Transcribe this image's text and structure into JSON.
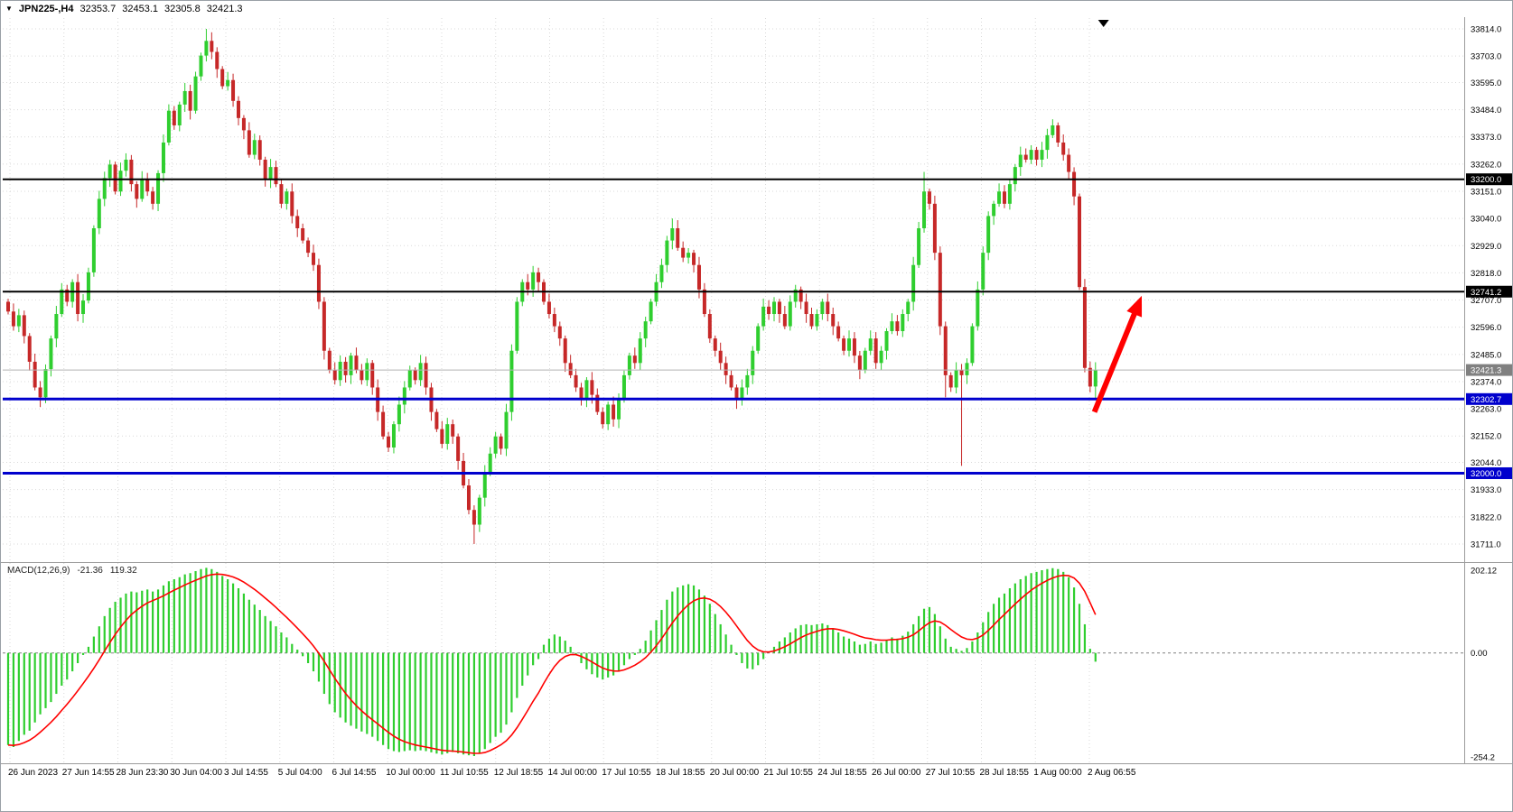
{
  "header": {
    "dropdown_icon": "▼",
    "symbol_period": "JPN225-,H4",
    "open": "32353.7",
    "high": "32453.1",
    "low": "32305.8",
    "close": "32421.3"
  },
  "chart_data": [
    {
      "type": "candlestick",
      "title": "JPN225-,H4",
      "last_bar": {
        "open": 32353.7,
        "high": 32453.1,
        "low": 32305.8,
        "close": 32421.3
      },
      "y_axis": {
        "ticks": [
          "33814.0",
          "33703.0",
          "33595.0",
          "33484.0",
          "33373.0",
          "33262.0",
          "33151.0",
          "33040.0",
          "32929.0",
          "32818.0",
          "32707.0",
          "32596.0",
          "32485.0",
          "32374.0",
          "32263.0",
          "32152.0",
          "32044.0",
          "31933.0",
          "31822.0",
          "31711.0"
        ]
      },
      "x_axis": {
        "labels": [
          "26 Jun 2023",
          "27 Jun 14:55",
          "28 Jun 23:30",
          "30 Jun 04:00",
          "3 Jul 14:55",
          "5 Jul 04:00",
          "6 Jul 14:55",
          "10 Jul 00:00",
          "11 Jul 10:55",
          "12 Jul 18:55",
          "14 Jul 00:00",
          "17 Jul 10:55",
          "18 Jul 18:55",
          "20 Jul 00:00",
          "21 Jul 10:55",
          "24 Jul 18:55",
          "26 Jul 00:00",
          "27 Jul 10:55",
          "28 Jul 18:55",
          "1 Aug 00:00",
          "2 Aug 06:55"
        ]
      },
      "first_open": 32700,
      "closes": [
        32660,
        32600,
        32645,
        32560,
        32455,
        32350,
        32310,
        32425,
        32550,
        32650,
        32750,
        32700,
        32780,
        32650,
        32705,
        32820,
        33000,
        33120,
        33205,
        33260,
        33150,
        33235,
        33280,
        33180,
        33120,
        33200,
        33150,
        33100,
        33225,
        33350,
        33480,
        33420,
        33505,
        33560,
        33480,
        33620,
        33705,
        33765,
        33720,
        33650,
        33580,
        33605,
        33520,
        33450,
        33400,
        33300,
        33360,
        33280,
        33200,
        33250,
        33180,
        33100,
        33150,
        33050,
        33000,
        32950,
        32900,
        32850,
        32700,
        32500,
        32420,
        32380,
        32455,
        32400,
        32480,
        32420,
        32380,
        32450,
        32350,
        32250,
        32150,
        32105,
        32200,
        32280,
        32350,
        32420,
        32380,
        32450,
        32350,
        32250,
        32180,
        32120,
        32200,
        32150,
        32050,
        31950,
        31850,
        31790,
        31900,
        32000,
        32080,
        32150,
        32100,
        32250,
        32500,
        32700,
        32780,
        32750,
        32820,
        32780,
        32700,
        32650,
        32600,
        32550,
        32450,
        32400,
        32350,
        32300,
        32380,
        32320,
        32250,
        32200,
        32280,
        32220,
        32300,
        32400,
        32480,
        32450,
        32550,
        32620,
        32700,
        32780,
        32850,
        32950,
        33000,
        32920,
        32880,
        32900,
        32850,
        32750,
        32650,
        32550,
        32500,
        32450,
        32400,
        32350,
        32300,
        32350,
        32400,
        32500,
        32600,
        32680,
        32650,
        32700,
        32650,
        32600,
        32700,
        32750,
        32700,
        32650,
        32600,
        32650,
        32700,
        32650,
        32600,
        32550,
        32500,
        32550,
        32480,
        32420,
        32500,
        32550,
        32450,
        32500,
        32580,
        32620,
        32580,
        32650,
        32700,
        32850,
        33000,
        33150,
        33100,
        32900,
        32600,
        32400,
        32350,
        32420,
        32400,
        32450,
        32600,
        32750,
        32900,
        33050,
        33100,
        33150,
        33100,
        33180,
        33250,
        33300,
        33280,
        33320,
        33280,
        33320,
        33380,
        33420,
        33350,
        33300,
        33230,
        33130,
        32760,
        32430,
        32354,
        32421.3
      ],
      "wick_overrides": {
        "6": [
          null,
          32270
        ],
        "37": [
          33814,
          null
        ],
        "38": [
          33800,
          null
        ],
        "87": [
          null,
          31711
        ],
        "124": [
          33040,
          null
        ],
        "136": [
          null,
          32263
        ],
        "171": [
          33230,
          null
        ],
        "175": [
          null,
          32310
        ],
        "178": [
          null,
          32030
        ],
        "195": [
          33445,
          null
        ],
        "203": [
          32453.1,
          32305.8
        ]
      },
      "colors": {
        "up": "#2fce2f",
        "down": "#c62828"
      },
      "levels": [
        {
          "price": 33200.0,
          "label": "33200.0",
          "line_color": "#000000",
          "tag_color": "#000000",
          "width": 2
        },
        {
          "price": 32741.2,
          "label": "32741.2",
          "line_color": "#000000",
          "tag_color": "#000000",
          "width": 2
        },
        {
          "price": 32421.3,
          "label": "32421.3",
          "line_color": "#b3b3b3",
          "tag_color": "#808080",
          "width": 1
        },
        {
          "price": 32302.7,
          "label": "32302.7",
          "line_color": "#0000cd",
          "tag_color": "#0000cd",
          "width": 3
        },
        {
          "price": 32000.0,
          "label": "32000.0",
          "line_color": "#0000cd",
          "tag_color": "#0000cd",
          "width": 3
        }
      ],
      "annotations": [
        {
          "type": "arrow",
          "from": [
            202.8,
            32250
          ],
          "to": [
            211,
            32690
          ],
          "color": "#ff0000"
        }
      ]
    },
    {
      "type": "bar+line",
      "title": "MACD(12,26,9)",
      "value_main": "-21.36",
      "value_signal": "119.32",
      "y_ticks": [
        "202.12",
        "0.00",
        "-254.2"
      ],
      "ylim": [
        -254.2,
        202.12
      ],
      "signal_period": 9,
      "colors": {
        "histogram": "#2fce2f",
        "signal": "#ff0000"
      },
      "macd": [
        -225,
        -230,
        -215,
        -200,
        -190,
        -170,
        -150,
        -135,
        -120,
        -100,
        -80,
        -65,
        -45,
        -25,
        -5,
        15,
        40,
        65,
        90,
        110,
        125,
        135,
        145,
        150,
        148,
        152,
        155,
        150,
        155,
        165,
        175,
        180,
        185,
        192,
        195,
        200,
        205,
        208,
        205,
        198,
        188,
        180,
        170,
        158,
        145,
        130,
        118,
        105,
        90,
        78,
        65,
        50,
        38,
        22,
        8,
        -8,
        -25,
        -45,
        -70,
        -100,
        -125,
        -145,
        -158,
        -170,
        -178,
        -185,
        -192,
        -198,
        -205,
        -215,
        -225,
        -235,
        -240,
        -242,
        -240,
        -238,
        -240,
        -238,
        -240,
        -243,
        -246,
        -248,
        -245,
        -242,
        -245,
        -248,
        -250,
        -252,
        -245,
        -235,
        -220,
        -205,
        -195,
        -175,
        -145,
        -110,
        -80,
        -55,
        -30,
        -15,
        20,
        35,
        45,
        40,
        30,
        15,
        -5,
        -25,
        -40,
        -52,
        -60,
        -65,
        -60,
        -55,
        -45,
        -30,
        -15,
        -5,
        10,
        30,
        55,
        80,
        105,
        130,
        150,
        160,
        165,
        168,
        165,
        155,
        140,
        120,
        95,
        70,
        45,
        20,
        -5,
        -25,
        -38,
        -40,
        -30,
        -15,
        0,
        15,
        28,
        38,
        50,
        60,
        68,
        70,
        68,
        70,
        72,
        68,
        60,
        50,
        40,
        35,
        28,
        20,
        22,
        28,
        22,
        25,
        32,
        38,
        35,
        42,
        52,
        70,
        90,
        108,
        112,
        95,
        65,
        35,
        15,
        10,
        5,
        12,
        28,
        50,
        75,
        100,
        120,
        135,
        145,
        158,
        170,
        180,
        188,
        195,
        198,
        202,
        205,
        207,
        205,
        198,
        185,
        160,
        120,
        70,
        10,
        -21.36
      ]
    }
  ]
}
